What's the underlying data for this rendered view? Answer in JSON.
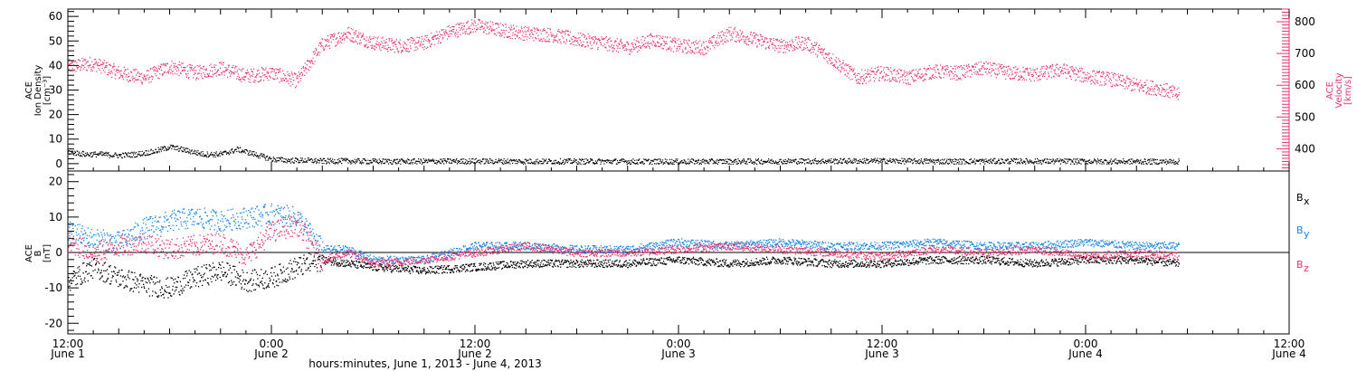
{
  "chart_data": [
    {
      "type": "scatter",
      "panel": "top",
      "ylabel_left": [
        "ACE",
        "Ion Density",
        "[cm⁻³]"
      ],
      "ylabel_right": [
        "ACE",
        "Velocity",
        "[km/s]"
      ],
      "ylim_left": [
        -3,
        63
      ],
      "yticks_left": [
        0,
        10,
        20,
        30,
        40,
        50,
        60
      ],
      "ylim_right": [
        330,
        840
      ],
      "yticks_right": [
        400,
        500,
        600,
        700,
        800
      ],
      "colors": {
        "density": "#000000",
        "velocity": "#e8336d"
      },
      "series": [
        {
          "name": "",
          "axis": "left",
          "x_hours": [
            0,
            2,
            4,
            6,
            8,
            10,
            12,
            14,
            16,
            18,
            20,
            22,
            24,
            26,
            28,
            30,
            32,
            36,
            40,
            48,
            56,
            64,
            72,
            80,
            88,
            96,
            104,
            112,
            120,
            131
          ],
          "values": [
            5,
            4,
            4,
            3.5,
            4,
            5,
            7,
            5.5,
            4,
            4,
            6,
            4,
            2,
            1.5,
            1.5,
            1.2,
            1.3,
            1.1,
            1.1,
            1.2,
            1.1,
            1.1,
            1.0,
            1.1,
            1.2,
            1.3,
            1.1,
            1.2,
            1.1,
            1.0
          ]
        },
        {
          "name": "",
          "axis": "right",
          "x_hours": [
            0,
            3,
            6,
            9,
            12,
            15,
            18,
            21,
            24,
            27,
            30,
            33,
            36,
            39,
            42,
            45,
            48,
            51,
            54,
            57,
            60,
            63,
            66,
            69,
            72,
            75,
            78,
            81,
            84,
            87,
            90,
            93,
            96,
            99,
            102,
            105,
            108,
            111,
            114,
            117,
            120,
            123,
            126,
            129,
            131
          ],
          "values": [
            660,
            670,
            640,
            625,
            660,
            640,
            655,
            630,
            640,
            615,
            730,
            765,
            735,
            725,
            735,
            770,
            790,
            775,
            765,
            760,
            745,
            735,
            720,
            745,
            725,
            720,
            765,
            745,
            725,
            735,
            685,
            625,
            640,
            625,
            645,
            640,
            655,
            640,
            635,
            650,
            630,
            620,
            600,
            590,
            570
          ]
        }
      ]
    },
    {
      "type": "scatter",
      "panel": "bottom",
      "ylabel": [
        "ACE",
        "B",
        "[nT]"
      ],
      "ylim": [
        -23,
        23
      ],
      "yticks": [
        -20,
        -10,
        0,
        10,
        20
      ],
      "zero_line": true,
      "legend_position": "right",
      "series": [
        {
          "name": "Bx",
          "color": "#000000",
          "x_hours": [
            0,
            3,
            6,
            9,
            12,
            15,
            18,
            21,
            24,
            27,
            30,
            33,
            36,
            42,
            48,
            54,
            60,
            66,
            72,
            78,
            84,
            90,
            96,
            102,
            108,
            114,
            120,
            126,
            131
          ],
          "values": [
            -8,
            -4,
            -7,
            -9,
            -10,
            -7,
            -5,
            -8,
            -7,
            -4,
            -2,
            -3,
            -4,
            -5,
            -4,
            -3,
            -3,
            -3,
            -2,
            -3,
            -2,
            -3,
            -3,
            -2,
            -2,
            -3,
            -2,
            -2,
            -3
          ]
        },
        {
          "name": "By",
          "color": "#1a86e8",
          "x_hours": [
            0,
            3,
            6,
            9,
            12,
            15,
            18,
            21,
            24,
            27,
            30,
            33,
            36,
            42,
            48,
            54,
            60,
            66,
            72,
            78,
            84,
            90,
            96,
            102,
            108,
            114,
            120,
            126,
            131
          ],
          "values": [
            6,
            4,
            3,
            7,
            9,
            10,
            9,
            10,
            11,
            10,
            1,
            1,
            -2,
            -2,
            2,
            2,
            1,
            1,
            3,
            2,
            3,
            2,
            2,
            3,
            2,
            2,
            3,
            2,
            2
          ]
        },
        {
          "name": "Bz",
          "color": "#e8336d",
          "x_hours": [
            0,
            3,
            6,
            9,
            12,
            15,
            18,
            21,
            24,
            27,
            30,
            33,
            36,
            42,
            48,
            54,
            60,
            66,
            72,
            78,
            84,
            90,
            96,
            102,
            108,
            114,
            120,
            126,
            131
          ],
          "values": [
            3,
            0,
            2,
            3,
            1,
            2,
            3,
            -1,
            6,
            8,
            -2,
            0,
            -3,
            -2,
            0,
            2,
            0,
            0,
            1,
            2,
            1,
            0,
            -1,
            1,
            0,
            1,
            -1,
            0,
            -1
          ]
        }
      ],
      "legend": [
        "B",
        "B",
        "B"
      ],
      "legend_subscripts": [
        "x",
        "y",
        "z"
      ]
    }
  ],
  "x_axis": {
    "xlim_hours": [
      0,
      144
    ],
    "ticks": [
      {
        "hour": 0,
        "time": "12:00",
        "date": "June 1"
      },
      {
        "hour": 24,
        "time": "0:00",
        "date": "June 2"
      },
      {
        "hour": 48,
        "time": "12:00",
        "date": "June 2"
      },
      {
        "hour": 72,
        "time": "0:00",
        "date": "June 3"
      },
      {
        "hour": 96,
        "time": "12:00",
        "date": "June 3"
      },
      {
        "hour": 120,
        "time": "0:00",
        "date": "June 4"
      },
      {
        "hour": 144,
        "time": "12:00",
        "date": "June 4"
      }
    ],
    "xlabel": "hours:minutes, June  1, 2013 - June  4, 2013"
  }
}
